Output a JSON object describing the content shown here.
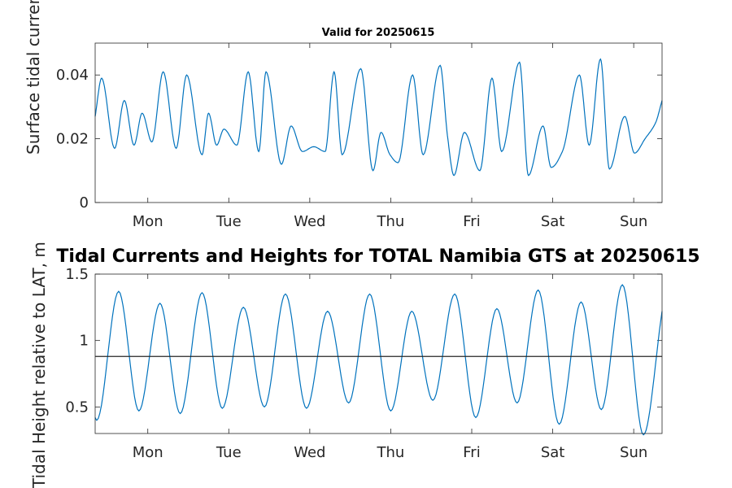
{
  "chart_data": [
    {
      "type": "line",
      "title": "Valid for 20250615",
      "ylabel": "Surface tidal current speed, kn",
      "xlabel": "",
      "ylim": [
        0,
        0.05
      ],
      "yticks": [
        0,
        0.02,
        0.04
      ],
      "ytick_labels": [
        "0",
        "0.02",
        "0.04"
      ],
      "xlim": [
        0,
        7
      ],
      "xticks": [
        0.65,
        1.65,
        2.65,
        3.65,
        4.65,
        5.65,
        6.65
      ],
      "xtick_labels": [
        "Mon",
        "Tue",
        "Wed",
        "Thu",
        "Fri",
        "Sat",
        "Sun"
      ],
      "series": [
        {
          "color": "#0072bd",
          "x": [
            0.0,
            0.08,
            0.24,
            0.36,
            0.48,
            0.58,
            0.7,
            0.84,
            1.0,
            1.13,
            1.32,
            1.4,
            1.5,
            1.59,
            1.75,
            1.89,
            2.02,
            2.11,
            2.3,
            2.42,
            2.56,
            2.7,
            2.84,
            2.95,
            3.05,
            3.28,
            3.43,
            3.53,
            3.64,
            3.74,
            3.92,
            4.05,
            4.26,
            4.35,
            4.43,
            4.56,
            4.75,
            4.9,
            5.02,
            5.24,
            5.35,
            5.53,
            5.63,
            5.77,
            5.98,
            6.1,
            6.24,
            6.35,
            6.54,
            6.66,
            6.79,
            6.92,
            7.0
          ],
          "values": [
            0.027,
            0.039,
            0.017,
            0.032,
            0.018,
            0.028,
            0.019,
            0.041,
            0.017,
            0.04,
            0.015,
            0.028,
            0.018,
            0.023,
            0.018,
            0.041,
            0.016,
            0.041,
            0.012,
            0.024,
            0.016,
            0.0175,
            0.016,
            0.041,
            0.015,
            0.042,
            0.01,
            0.022,
            0.015,
            0.0125,
            0.04,
            0.015,
            0.043,
            0.021,
            0.0085,
            0.022,
            0.01,
            0.039,
            0.016,
            0.044,
            0.0085,
            0.024,
            0.011,
            0.016,
            0.04,
            0.018,
            0.045,
            0.0105,
            0.027,
            0.0155,
            0.02,
            0.025,
            0.032
          ]
        }
      ]
    },
    {
      "type": "line",
      "title": "Tidal Currents and Heights for TOTAL Namibia GTS at 20250615",
      "ylabel": "Tidal Height relative to LAT, m",
      "xlabel": "",
      "ylim": [
        0.3,
        1.5
      ],
      "yticks": [
        0.5,
        1,
        1.5
      ],
      "ytick_labels": [
        "0.5",
        "1",
        "1.5"
      ],
      "xlim": [
        0,
        7
      ],
      "xticks": [
        0.65,
        1.65,
        2.65,
        3.65,
        4.65,
        5.65,
        6.65
      ],
      "xtick_labels": [
        "Mon",
        "Tue",
        "Wed",
        "Thu",
        "Fri",
        "Sat",
        "Sun"
      ],
      "reference_line": 0.88,
      "series": [
        {
          "color": "#0072bd",
          "x": [
            0.0,
            0.02,
            0.29,
            0.54,
            0.8,
            1.05,
            1.32,
            1.57,
            1.83,
            2.09,
            2.35,
            2.61,
            2.87,
            3.13,
            3.39,
            3.65,
            3.91,
            4.17,
            4.44,
            4.7,
            4.96,
            5.21,
            5.47,
            5.73,
            6.0,
            6.25,
            6.51,
            6.77,
            7.0
          ],
          "values": [
            0.42,
            0.4,
            1.37,
            0.47,
            1.28,
            0.45,
            1.36,
            0.49,
            1.25,
            0.5,
            1.35,
            0.49,
            1.22,
            0.53,
            1.35,
            0.47,
            1.22,
            0.55,
            1.35,
            0.42,
            1.24,
            0.53,
            1.38,
            0.37,
            1.29,
            0.48,
            1.42,
            0.29,
            1.22
          ]
        }
      ]
    }
  ]
}
